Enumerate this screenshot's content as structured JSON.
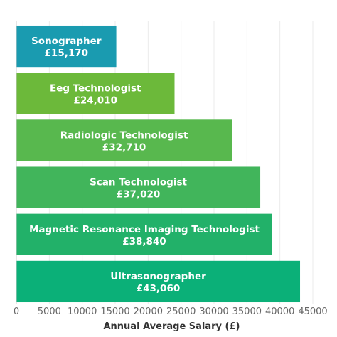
{
  "chart_data": {
    "type": "bar",
    "orientation": "horizontal",
    "categories": [
      "Sonographer",
      "Eeg Technologist",
      "Radiologic Technologist",
      "Scan Technologist",
      "Magnetic Resonance Imaging Technologist",
      "Ultrasonographer"
    ],
    "values": [
      15170,
      24010,
      32710,
      37020,
      38840,
      43060
    ],
    "value_labels": [
      "£15,170",
      "£24,010",
      "£32,710",
      "£37,020",
      "£38,840",
      "£43,060"
    ],
    "colors": [
      "#1a9bb0",
      "#6cb93a",
      "#58b84e",
      "#41b55b",
      "#22b169",
      "#0bb078"
    ],
    "xlabel": "Annual Average Salary (£)",
    "ylabel": "",
    "xlim": [
      0,
      45000
    ],
    "xticks": [
      0,
      5000,
      10000,
      15000,
      20000,
      25000,
      30000,
      35000,
      40000,
      45000
    ],
    "xtick_labels": [
      "0",
      "5000",
      "10000",
      "15000",
      "20000",
      "25000",
      "30000",
      "35000",
      "40000",
      "45000"
    ],
    "grid": true
  }
}
